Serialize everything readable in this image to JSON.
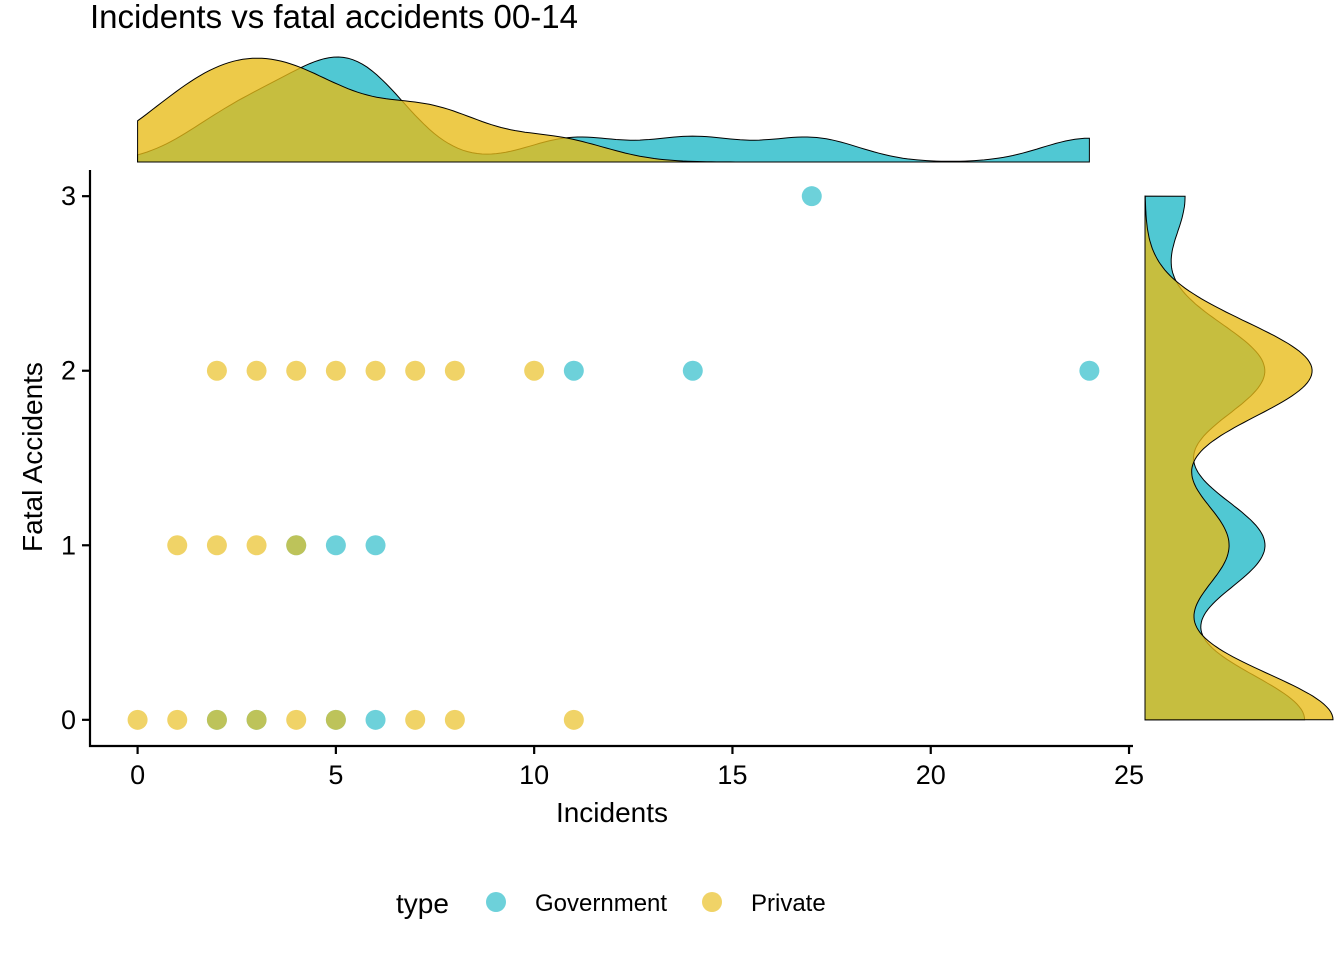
{
  "chart_data": {
    "type": "scatter",
    "title": "Incidents vs fatal accidents 00-14",
    "xlabel": "Incidents",
    "ylabel": "Fatal Accidents",
    "xlim": [
      -1.2,
      25.1
    ],
    "ylim": [
      -0.15,
      3.15
    ],
    "x_ticks": [
      "0",
      "5",
      "10",
      "15",
      "20",
      "25"
    ],
    "y_ticks": [
      "0",
      "1",
      "2",
      "3"
    ],
    "grid": false,
    "legend": {
      "title": "type",
      "placement": "bottom",
      "entries": [
        "Government",
        "Private"
      ]
    },
    "marginals": {
      "top": "density of Incidents by type",
      "right": "density of Fatal Accidents by type"
    },
    "colors": {
      "Government": "#1fb9c6",
      "Private": "#e8bb16"
    },
    "series": [
      {
        "name": "Government",
        "points": [
          [
            17,
            3
          ],
          [
            11,
            2
          ],
          [
            14,
            2
          ],
          [
            24,
            2
          ],
          [
            4,
            1
          ],
          [
            5,
            1
          ],
          [
            6,
            1
          ],
          [
            2,
            0
          ],
          [
            3,
            0
          ],
          [
            5,
            0
          ],
          [
            6,
            0
          ]
        ]
      },
      {
        "name": "Private",
        "points": [
          [
            2,
            2
          ],
          [
            3,
            2
          ],
          [
            4,
            2
          ],
          [
            5,
            2
          ],
          [
            6,
            2
          ],
          [
            7,
            2
          ],
          [
            8,
            2
          ],
          [
            10,
            2
          ],
          [
            1,
            1
          ],
          [
            2,
            1
          ],
          [
            3,
            1
          ],
          [
            4,
            1
          ],
          [
            0,
            0
          ],
          [
            1,
            0
          ],
          [
            2,
            0
          ],
          [
            3,
            0
          ],
          [
            4,
            0
          ],
          [
            5,
            0
          ],
          [
            7,
            0
          ],
          [
            8,
            0
          ],
          [
            11,
            0
          ]
        ]
      }
    ]
  }
}
